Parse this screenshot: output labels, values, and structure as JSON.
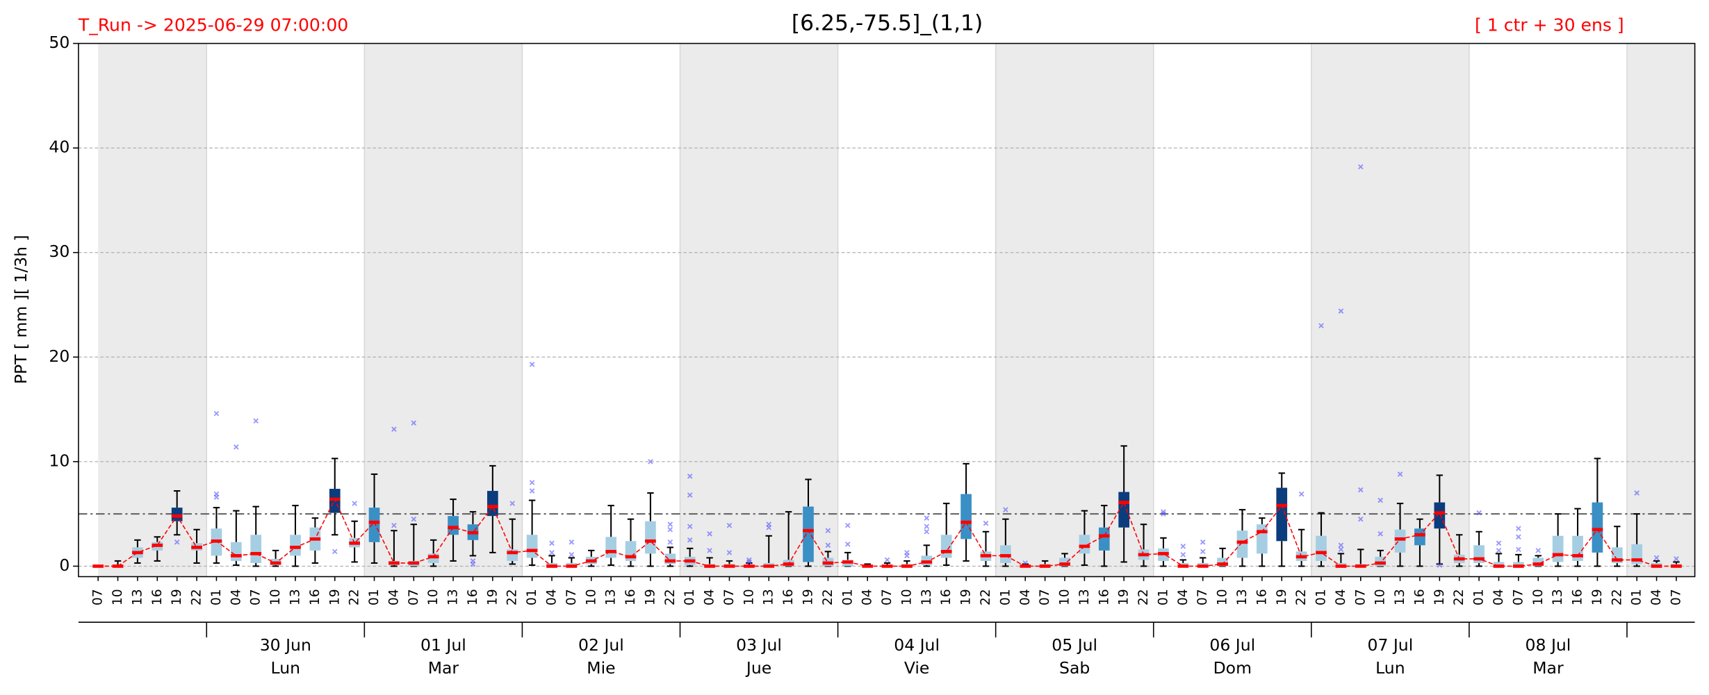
{
  "chart_data": {
    "type": "box",
    "title": "[6.25,-75.5]_(1,1)",
    "run_label": "T_Run -> 2025-06-29  07:00:00",
    "members_label": "[ 1 ctr + 30 ens ]",
    "y_label": "PPT  [ mm ][ 1/3h ]",
    "ylim": [
      -1,
      50
    ],
    "yticks": [
      0,
      10,
      20,
      30,
      40,
      50
    ],
    "grid": true,
    "threshold": 5,
    "categories": [
      "07",
      "10",
      "13",
      "16",
      "19",
      "22",
      "01",
      "04",
      "07",
      "10",
      "13",
      "16",
      "19",
      "22",
      "01",
      "04",
      "07",
      "10",
      "13",
      "16",
      "19",
      "22",
      "01",
      "04",
      "07",
      "10",
      "13",
      "16",
      "19",
      "22",
      "01",
      "04",
      "07",
      "10",
      "13",
      "16",
      "19",
      "22",
      "01",
      "04",
      "07",
      "10",
      "13",
      "16",
      "19",
      "22",
      "01",
      "04",
      "07",
      "10",
      "13",
      "16",
      "19",
      "22",
      "01",
      "04",
      "07",
      "10",
      "13",
      "16",
      "19",
      "22",
      "01",
      "04",
      "07",
      "10",
      "13",
      "16",
      "19",
      "22",
      "01",
      "04",
      "07",
      "10",
      "13",
      "16",
      "19",
      "22",
      "01",
      "04",
      "07"
    ],
    "days": [
      {
        "date": "30 Jun",
        "weekday": "Lun"
      },
      {
        "date": "01 Jul",
        "weekday": "Mar"
      },
      {
        "date": "02 Jul",
        "weekday": "Mie"
      },
      {
        "date": "03 Jul",
        "weekday": "Jue"
      },
      {
        "date": "04 Jul",
        "weekday": "Vie"
      },
      {
        "date": "05 Jul",
        "weekday": "Sab"
      },
      {
        "date": "06 Jul",
        "weekday": "Dom"
      },
      {
        "date": "07 Jul",
        "weekday": "Lun"
      },
      {
        "date": "08 Jul",
        "weekday": "Mar"
      }
    ],
    "control": {
      "color": "#ff0000",
      "values": [
        0,
        0,
        1.3,
        2.0,
        4.8,
        1.8,
        2.4,
        1.0,
        1.2,
        0.3,
        1.8,
        2.6,
        6.4,
        2.2,
        4.2,
        0.3,
        0.3,
        0.9,
        3.7,
        3.2,
        5.7,
        1.3,
        1.5,
        0,
        0,
        0.5,
        1.4,
        0.9,
        2.4,
        0.5,
        0.5,
        0,
        0,
        0,
        0,
        0.2,
        3.4,
        0.3,
        0.4,
        0,
        0,
        0,
        0.4,
        1.4,
        4.2,
        1.0,
        1.0,
        0,
        0,
        0.2,
        1.9,
        2.9,
        6.1,
        1.1,
        1.2,
        0,
        0,
        0.2,
        2.3,
        3.3,
        5.8,
        0.9,
        1.3,
        0,
        0,
        0.3,
        2.6,
        3.0,
        5.1,
        0.7,
        0.7,
        0,
        0,
        0.2,
        1.1,
        1.0,
        3.5,
        0.6,
        0.6,
        0,
        0
      ]
    },
    "flier_color": "#5555ff",
    "boxes": [
      {
        "q1": 0,
        "q3": 0,
        "whislo": 0,
        "whishi": 0,
        "color": "#a6cee3",
        "fliers": []
      },
      {
        "q1": 0,
        "q3": 0.1,
        "whislo": 0,
        "whishi": 0.5,
        "color": "#a6cee3",
        "fliers": []
      },
      {
        "q1": 0.8,
        "q3": 1.8,
        "whislo": 0.3,
        "whishi": 2.5,
        "color": "#a6cee3",
        "fliers": []
      },
      {
        "q1": 1.5,
        "q3": 2.3,
        "whislo": 0.5,
        "whishi": 2.8,
        "color": "#a6cee3",
        "fliers": []
      },
      {
        "q1": 4.3,
        "q3": 5.6,
        "whislo": 3.0,
        "whishi": 7.2,
        "color": "#0b3c7d",
        "fliers": [
          2.3
        ]
      },
      {
        "q1": 1.5,
        "q3": 2.2,
        "whislo": 0.3,
        "whishi": 3.5,
        "color": "#a6cee3",
        "fliers": []
      },
      {
        "q1": 1.0,
        "q3": 3.6,
        "whislo": 0.3,
        "whishi": 5.6,
        "color": "#a6cee3",
        "fliers": [
          6.6,
          6.9,
          14.6
        ]
      },
      {
        "q1": 0.5,
        "q3": 2.3,
        "whislo": 0.1,
        "whishi": 5.3,
        "color": "#a6cee3",
        "fliers": [
          11.4
        ]
      },
      {
        "q1": 0.3,
        "q3": 3.0,
        "whislo": 0,
        "whishi": 5.7,
        "color": "#a6cee3",
        "fliers": [
          13.9
        ]
      },
      {
        "q1": 0.1,
        "q3": 0.7,
        "whislo": 0,
        "whishi": 1.5,
        "color": "#a6cee3",
        "fliers": []
      },
      {
        "q1": 1.0,
        "q3": 3.0,
        "whislo": 0,
        "whishi": 5.8,
        "color": "#a6cee3",
        "fliers": []
      },
      {
        "q1": 1.5,
        "q3": 3.7,
        "whislo": 0.3,
        "whishi": 4.6,
        "color": "#a6cee3",
        "fliers": []
      },
      {
        "q1": 5.1,
        "q3": 7.4,
        "whislo": 3.0,
        "whishi": 10.3,
        "color": "#0b3c7d",
        "fliers": [
          1.4
        ]
      },
      {
        "q1": 1.8,
        "q3": 2.7,
        "whislo": 0.4,
        "whishi": 4.3,
        "color": "#a6cee3",
        "fliers": [
          6.0
        ]
      },
      {
        "q1": 2.3,
        "q3": 5.6,
        "whislo": 0.3,
        "whishi": 8.8,
        "color": "#3a8fc5",
        "fliers": []
      },
      {
        "q1": 0.1,
        "q3": 0.5,
        "whislo": 0,
        "whishi": 3.4,
        "color": "#a6cee3",
        "fliers": [
          3.9,
          13.1
        ]
      },
      {
        "q1": 0,
        "q3": 0.5,
        "whislo": 0,
        "whishi": 4.0,
        "color": "#a6cee3",
        "fliers": [
          4.5,
          13.7
        ]
      },
      {
        "q1": 0.3,
        "q3": 1.2,
        "whislo": 0,
        "whishi": 2.5,
        "color": "#a6cee3",
        "fliers": []
      },
      {
        "q1": 3.0,
        "q3": 4.8,
        "whislo": 0.5,
        "whishi": 6.4,
        "color": "#3a8fc5",
        "fliers": []
      },
      {
        "q1": 2.5,
        "q3": 4.0,
        "whislo": 1.0,
        "whishi": 5.2,
        "color": "#3a8fc5",
        "fliers": [
          0.2,
          0.5
        ]
      },
      {
        "q1": 4.8,
        "q3": 7.2,
        "whislo": 1.3,
        "whishi": 9.6,
        "color": "#0b3c7d",
        "fliers": []
      },
      {
        "q1": 0.5,
        "q3": 1.6,
        "whislo": 0.2,
        "whishi": 4.5,
        "color": "#a6cee3",
        "fliers": [
          6.0
        ]
      },
      {
        "q1": 0.8,
        "q3": 3.0,
        "whislo": 0.1,
        "whishi": 6.3,
        "color": "#a6cee3",
        "fliers": [
          7.2,
          8.0,
          19.3
        ]
      },
      {
        "q1": 0,
        "q3": 0.3,
        "whislo": 0,
        "whishi": 1.0,
        "color": "#a6cee3",
        "fliers": [
          1.3,
          2.2
        ]
      },
      {
        "q1": 0,
        "q3": 0.3,
        "whislo": 0,
        "whishi": 0.8,
        "color": "#a6cee3",
        "fliers": [
          1.1,
          2.3
        ]
      },
      {
        "q1": 0.2,
        "q3": 0.9,
        "whislo": 0,
        "whishi": 1.5,
        "color": "#a6cee3",
        "fliers": []
      },
      {
        "q1": 0.8,
        "q3": 2.8,
        "whislo": 0.1,
        "whishi": 5.8,
        "color": "#a6cee3",
        "fliers": []
      },
      {
        "q1": 0.5,
        "q3": 2.4,
        "whislo": 0,
        "whishi": 4.5,
        "color": "#a6cee3",
        "fliers": []
      },
      {
        "q1": 1.2,
        "q3": 4.3,
        "whislo": 0,
        "whishi": 7.0,
        "color": "#a6cee3",
        "fliers": [
          10.0
        ]
      },
      {
        "q1": 0.2,
        "q3": 1.2,
        "whislo": 0,
        "whishi": 1.8,
        "color": "#a6cee3",
        "fliers": [
          2.3,
          3.5,
          4.0
        ]
      },
      {
        "q1": 0.1,
        "q3": 0.9,
        "whislo": 0,
        "whishi": 1.7,
        "color": "#a6cee3",
        "fliers": [
          2.5,
          3.8,
          6.8,
          8.6
        ]
      },
      {
        "q1": 0,
        "q3": 0.2,
        "whislo": 0,
        "whishi": 0.8,
        "color": "#a6cee3",
        "fliers": [
          1.5,
          3.1
        ]
      },
      {
        "q1": 0,
        "q3": 0.2,
        "whislo": 0,
        "whishi": 0.5,
        "color": "#a6cee3",
        "fliers": [
          1.3,
          3.9
        ]
      },
      {
        "q1": 0,
        "q3": 0.1,
        "whislo": 0,
        "whishi": 0.3,
        "color": "#a6cee3",
        "fliers": [
          0.4,
          0.6
        ]
      },
      {
        "q1": 0,
        "q3": 0.3,
        "whislo": 0,
        "whishi": 2.9,
        "color": "#a6cee3",
        "fliers": [
          3.7,
          4.0
        ]
      },
      {
        "q1": 0,
        "q3": 0.6,
        "whislo": 0,
        "whishi": 5.2,
        "color": "#a6cee3",
        "fliers": []
      },
      {
        "q1": 0.4,
        "q3": 5.7,
        "whislo": 0,
        "whishi": 8.3,
        "color": "#3a8fc5",
        "fliers": []
      },
      {
        "q1": 0,
        "q3": 0.8,
        "whislo": 0,
        "whishi": 1.4,
        "color": "#a6cee3",
        "fliers": [
          2.0,
          3.4
        ]
      },
      {
        "q1": 0,
        "q3": 0.6,
        "whislo": 0,
        "whishi": 1.3,
        "color": "#a6cee3",
        "fliers": [
          2.1,
          3.9
        ]
      },
      {
        "q1": 0,
        "q3": 0.1,
        "whislo": 0,
        "whishi": 0.2,
        "color": "#a6cee3",
        "fliers": []
      },
      {
        "q1": 0,
        "q3": 0.1,
        "whislo": 0,
        "whishi": 0.3,
        "color": "#a6cee3",
        "fliers": [
          0.6
        ]
      },
      {
        "q1": 0,
        "q3": 0.2,
        "whislo": 0,
        "whishi": 0.5,
        "color": "#a6cee3",
        "fliers": [
          1.0,
          1.3
        ]
      },
      {
        "q1": 0.1,
        "q3": 1.0,
        "whislo": 0,
        "whishi": 2.0,
        "color": "#a6cee3",
        "fliers": [
          3.3,
          3.8,
          4.6
        ]
      },
      {
        "q1": 0.8,
        "q3": 3.0,
        "whislo": 0.1,
        "whishi": 6.0,
        "color": "#a6cee3",
        "fliers": []
      },
      {
        "q1": 2.6,
        "q3": 6.9,
        "whislo": 0.5,
        "whishi": 9.8,
        "color": "#3a8fc5",
        "fliers": []
      },
      {
        "q1": 0.5,
        "q3": 1.4,
        "whislo": 0,
        "whishi": 3.3,
        "color": "#a6cee3",
        "fliers": [
          4.1
        ]
      },
      {
        "q1": 0.3,
        "q3": 2.0,
        "whislo": 0,
        "whishi": 4.5,
        "color": "#a6cee3",
        "fliers": [
          5.4
        ]
      },
      {
        "q1": 0,
        "q3": 0.1,
        "whislo": 0,
        "whishi": 0.2,
        "color": "#a6cee3",
        "fliers": [
          0.3
        ]
      },
      {
        "q1": 0,
        "q3": 0.2,
        "whislo": 0,
        "whishi": 0.5,
        "color": "#a6cee3",
        "fliers": []
      },
      {
        "q1": 0,
        "q3": 0.8,
        "whislo": 0,
        "whishi": 1.2,
        "color": "#a6cee3",
        "fliers": []
      },
      {
        "q1": 1.2,
        "q3": 3.0,
        "whislo": 0.1,
        "whishi": 5.3,
        "color": "#a6cee3",
        "fliers": []
      },
      {
        "q1": 1.5,
        "q3": 3.7,
        "whislo": 0,
        "whishi": 5.8,
        "color": "#3a8fc5",
        "fliers": []
      },
      {
        "q1": 3.7,
        "q3": 7.1,
        "whislo": 0.4,
        "whishi": 11.5,
        "color": "#0b3c7d",
        "fliers": []
      },
      {
        "q1": 0.6,
        "q3": 1.6,
        "whislo": 0,
        "whishi": 4.0,
        "color": "#a6cee3",
        "fliers": []
      },
      {
        "q1": 0.5,
        "q3": 1.7,
        "whislo": 0,
        "whishi": 2.7,
        "color": "#a6cee3",
        "fliers": [
          5.0,
          5.2
        ]
      },
      {
        "q1": 0,
        "q3": 0.3,
        "whislo": 0,
        "whishi": 0.6,
        "color": "#a6cee3",
        "fliers": [
          1.1,
          1.9
        ]
      },
      {
        "q1": 0,
        "q3": 0.3,
        "whislo": 0,
        "whishi": 0.8,
        "color": "#a6cee3",
        "fliers": [
          1.4,
          2.3
        ]
      },
      {
        "q1": 0,
        "q3": 0.8,
        "whislo": 0,
        "whishi": 1.7,
        "color": "#a6cee3",
        "fliers": []
      },
      {
        "q1": 0.8,
        "q3": 3.4,
        "whislo": 0,
        "whishi": 5.4,
        "color": "#a6cee3",
        "fliers": []
      },
      {
        "q1": 1.2,
        "q3": 4.0,
        "whislo": 0,
        "whishi": 4.6,
        "color": "#a6cee3",
        "fliers": []
      },
      {
        "q1": 2.4,
        "q3": 7.5,
        "whislo": 0,
        "whishi": 8.9,
        "color": "#0b3c7d",
        "fliers": []
      },
      {
        "q1": 0.5,
        "q3": 1.4,
        "whislo": 0,
        "whishi": 3.5,
        "color": "#a6cee3",
        "fliers": [
          6.9
        ]
      },
      {
        "q1": 0.5,
        "q3": 2.9,
        "whislo": 0,
        "whishi": 5.1,
        "color": "#a6cee3",
        "fliers": [
          23.0
        ]
      },
      {
        "q1": 0,
        "q3": 0.3,
        "whislo": 0,
        "whishi": 1.2,
        "color": "#a6cee3",
        "fliers": [
          1.6,
          2.0,
          24.4
        ]
      },
      {
        "q1": 0,
        "q3": 0.2,
        "whislo": 0,
        "whishi": 1.6,
        "color": "#a6cee3",
        "fliers": [
          4.5,
          7.3,
          38.2
        ]
      },
      {
        "q1": 0,
        "q3": 0.9,
        "whislo": 0,
        "whishi": 1.5,
        "color": "#a6cee3",
        "fliers": [
          3.1,
          6.3
        ]
      },
      {
        "q1": 1.3,
        "q3": 3.5,
        "whislo": 0,
        "whishi": 6.0,
        "color": "#a6cee3",
        "fliers": [
          8.8
        ]
      },
      {
        "q1": 2.0,
        "q3": 3.6,
        "whislo": 0,
        "whishi": 4.5,
        "color": "#3a8fc5",
        "fliers": []
      },
      {
        "q1": 3.6,
        "q3": 6.1,
        "whislo": 0.2,
        "whishi": 8.7,
        "color": "#0b3c7d",
        "fliers": [
          0.1
        ]
      },
      {
        "q1": 0.3,
        "q3": 1.1,
        "whislo": 0,
        "whishi": 3.0,
        "color": "#a6cee3",
        "fliers": []
      },
      {
        "q1": 0.3,
        "q3": 2.0,
        "whislo": 0,
        "whishi": 3.3,
        "color": "#a6cee3",
        "fliers": [
          5.1
        ]
      },
      {
        "q1": 0,
        "q3": 0.4,
        "whislo": 0,
        "whishi": 1.2,
        "color": "#a6cee3",
        "fliers": [
          1.5,
          2.2
        ]
      },
      {
        "q1": 0,
        "q3": 0.4,
        "whislo": 0,
        "whishi": 1.1,
        "color": "#a6cee3",
        "fliers": [
          1.6,
          2.8,
          3.6
        ]
      },
      {
        "q1": 0,
        "q3": 0.8,
        "whislo": 0,
        "whishi": 1.0,
        "color": "#a6cee3",
        "fliers": [
          1.5
        ]
      },
      {
        "q1": 0.4,
        "q3": 2.9,
        "whislo": 0,
        "whishi": 5.0,
        "color": "#a6cee3",
        "fliers": []
      },
      {
        "q1": 0.5,
        "q3": 2.9,
        "whislo": 0,
        "whishi": 5.5,
        "color": "#a6cee3",
        "fliers": []
      },
      {
        "q1": 1.3,
        "q3": 6.1,
        "whislo": 0,
        "whishi": 10.3,
        "color": "#3a8fc5",
        "fliers": []
      },
      {
        "q1": 0.3,
        "q3": 1.8,
        "whislo": 0,
        "whishi": 3.8,
        "color": "#a6cee3",
        "fliers": []
      },
      {
        "q1": 0.2,
        "q3": 2.1,
        "whislo": 0,
        "whishi": 5.0,
        "color": "#a6cee3",
        "fliers": [
          7.0
        ]
      },
      {
        "q1": 0,
        "q3": 0.3,
        "whislo": 0,
        "whishi": 0.5,
        "color": "#a6cee3",
        "fliers": [
          0.8
        ]
      },
      {
        "q1": 0,
        "q3": 0.2,
        "whislo": 0,
        "whishi": 0.4,
        "color": "#a6cee3",
        "fliers": [
          0.7
        ]
      }
    ]
  }
}
